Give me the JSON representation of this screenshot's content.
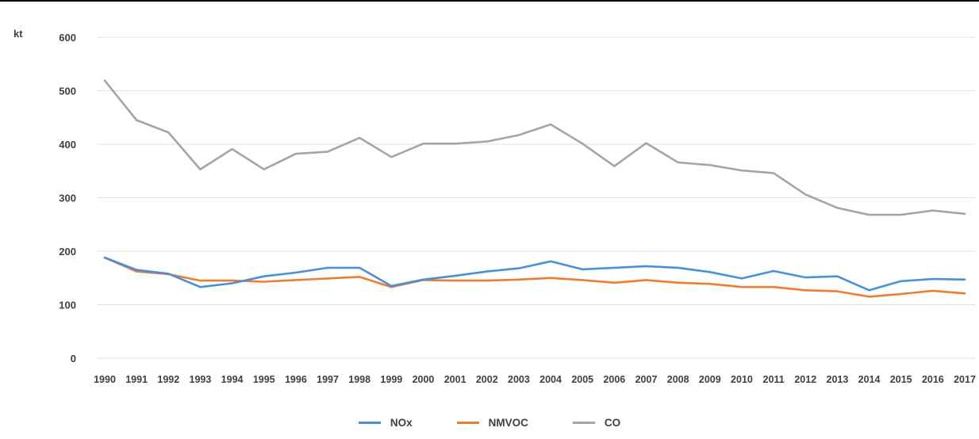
{
  "chart_data": {
    "type": "line",
    "ylabel": "kt",
    "ylim": [
      0,
      600
    ],
    "yticks": [
      "0",
      "100",
      "200",
      "300",
      "400",
      "500",
      "600"
    ],
    "grid": true,
    "legend_position": "bottom",
    "categories": [
      "1990",
      "1991",
      "1992",
      "1993",
      "1994",
      "1995",
      "1996",
      "1997",
      "1998",
      "1999",
      "2000",
      "2001",
      "2002",
      "2003",
      "2004",
      "2005",
      "2006",
      "2007",
      "2008",
      "2009",
      "2010",
      "2011",
      "2012",
      "2013",
      "2014",
      "2015",
      "2016",
      "2017"
    ],
    "series": [
      {
        "name": "NOx",
        "color": "#4a90d9",
        "values": [
          188,
          165,
          158,
          133,
          140,
          153,
          160,
          169,
          169,
          135,
          147,
          154,
          162,
          168,
          181,
          166,
          169,
          172,
          169,
          161,
          149,
          163,
          151,
          153,
          127,
          144,
          148,
          147
        ]
      },
      {
        "name": "NMVOC",
        "color": "#ed7d31",
        "values": [
          188,
          162,
          157,
          145,
          145,
          143,
          146,
          149,
          152,
          133,
          146,
          145,
          145,
          147,
          150,
          146,
          141,
          146,
          141,
          139,
          133,
          133,
          127,
          125,
          115,
          120,
          126,
          121
        ]
      },
      {
        "name": "CO",
        "color": "#a5a5a5",
        "values": [
          519,
          445,
          422,
          353,
          391,
          353,
          382,
          386,
          412,
          376,
          401,
          401,
          405,
          417,
          437,
          401,
          359,
          402,
          366,
          361,
          351,
          346,
          306,
          281,
          268,
          268,
          276,
          270
        ]
      }
    ]
  }
}
